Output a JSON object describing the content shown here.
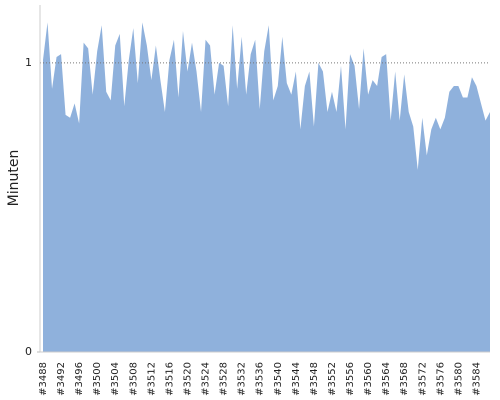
{
  "chart_data": {
    "type": "area",
    "y_label": "Minuten",
    "categories": [
      "#3488",
      null,
      null,
      null,
      "#3492",
      null,
      null,
      null,
      "#3496",
      null,
      null,
      null,
      "#3500",
      null,
      null,
      null,
      "#3504",
      null,
      null,
      null,
      "#3508",
      null,
      null,
      null,
      "#3512",
      null,
      null,
      null,
      "#3516",
      null,
      null,
      null,
      "#3520",
      null,
      null,
      null,
      "#3524",
      null,
      null,
      null,
      "#3528",
      null,
      null,
      null,
      "#3532",
      null,
      null,
      null,
      "#3536",
      null,
      null,
      null,
      "#3540",
      null,
      null,
      null,
      "#3544",
      null,
      null,
      null,
      "#3548",
      null,
      null,
      null,
      "#3552",
      null,
      null,
      null,
      "#3556",
      null,
      null,
      null,
      "#3560",
      null,
      null,
      null,
      "#3564",
      null,
      null,
      null,
      "#3568",
      null,
      null,
      null,
      "#3572",
      null,
      null,
      null,
      "#3576",
      null,
      null,
      null,
      "#3580",
      null,
      null,
      null,
      "#3584",
      null,
      null,
      null
    ],
    "values": [
      1.01,
      1.14,
      0.91,
      1.02,
      1.03,
      0.82,
      0.81,
      0.86,
      0.79,
      1.07,
      1.05,
      0.89,
      1.04,
      1.13,
      0.9,
      0.87,
      1.06,
      1.1,
      0.85,
      1.01,
      1.12,
      0.93,
      1.14,
      1.06,
      0.94,
      1.06,
      0.94,
      0.83,
      1.01,
      1.08,
      0.88,
      1.11,
      0.97,
      1.07,
      0.97,
      0.83,
      1.08,
      1.06,
      0.89,
      1.0,
      0.99,
      0.85,
      1.13,
      0.91,
      1.09,
      0.89,
      1.03,
      1.08,
      0.84,
      1.04,
      1.13,
      0.87,
      0.92,
      1.09,
      0.93,
      0.89,
      0.97,
      0.77,
      0.92,
      0.97,
      0.78,
      1.0,
      0.97,
      0.83,
      0.9,
      0.83,
      0.99,
      0.77,
      1.03,
      0.99,
      0.84,
      1.05,
      0.89,
      0.94,
      0.92,
      1.02,
      1.03,
      0.8,
      0.97,
      0.8,
      0.96,
      0.83,
      0.78,
      0.63,
      0.81,
      0.68,
      0.77,
      0.81,
      0.77,
      0.81,
      0.9,
      0.92,
      0.92,
      0.88,
      0.88,
      0.95,
      0.92,
      0.86,
      0.8,
      0.83
    ],
    "color": "#8fb1dc",
    "ylim": [
      0,
      1.2
    ],
    "yticks": [
      0,
      1
    ],
    "grid": true
  }
}
